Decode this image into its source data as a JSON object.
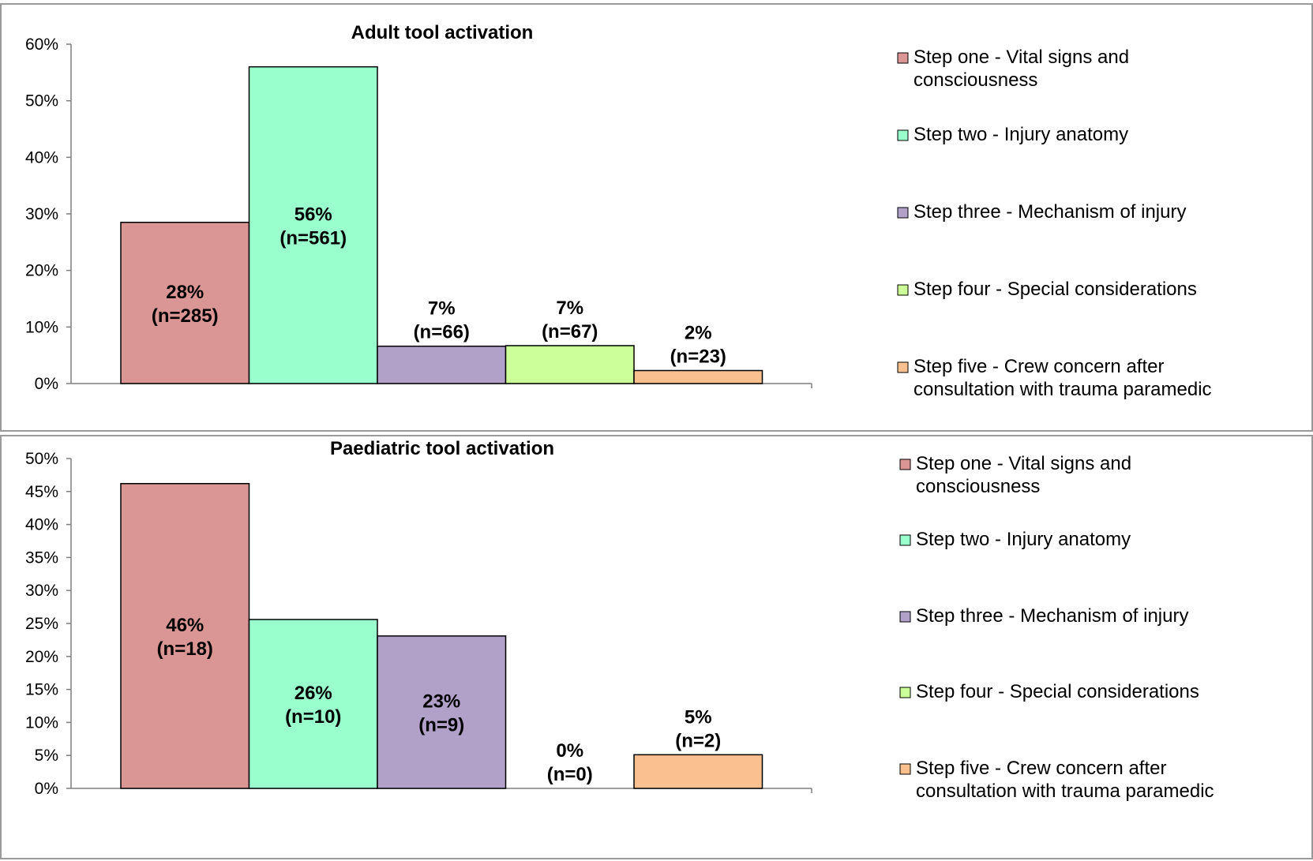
{
  "chart_data": [
    {
      "type": "bar",
      "title": "Adult tool activation",
      "yticks": [
        "0%",
        "10%",
        "20%",
        "30%",
        "40%",
        "50%",
        "60%"
      ],
      "ylim": [
        0,
        60
      ],
      "grid": false,
      "legend_position": "right",
      "series": [
        {
          "name": "Step one - Vital signs and consciousness",
          "legend_lines": [
            "Step one - Vital signs and",
            "consciousness"
          ],
          "value": 28.5,
          "label_pct": "28%",
          "label_n": "(n=285)",
          "color": "#D99694"
        },
        {
          "name": "Step two - Injury anatomy",
          "legend_lines": [
            "Step two - Injury anatomy"
          ],
          "value": 56,
          "label_pct": "56%",
          "label_n": "(n=561)",
          "color": "#99FFCC"
        },
        {
          "name": "Step three - Mechanism of injury",
          "legend_lines": [
            "Step three - Mechanism of injury"
          ],
          "value": 6.6,
          "label_pct": "7%",
          "label_n": "(n=66)",
          "color": "#B1A0C7"
        },
        {
          "name": "Step four - Special considerations",
          "legend_lines": [
            "Step four - Special considerations"
          ],
          "value": 6.7,
          "label_pct": "7%",
          "label_n": "(n=67)",
          "color": "#CCFF99"
        },
        {
          "name": "Step five - Crew concern after consultation with trauma paramedic",
          "legend_lines": [
            "Step five - Crew concern after",
            "consultation with trauma paramedic"
          ],
          "value": 2.3,
          "label_pct": "2%",
          "label_n": "(n=23)",
          "color": "#FAC090"
        }
      ]
    },
    {
      "type": "bar",
      "title": "Paediatric tool activation",
      "yticks": [
        "0%",
        "5%",
        "10%",
        "15%",
        "20%",
        "25%",
        "30%",
        "35%",
        "40%",
        "45%",
        "50%"
      ],
      "ylim": [
        0,
        50
      ],
      "grid": false,
      "legend_position": "right",
      "series": [
        {
          "name": "Step one - Vital signs and consciousness",
          "legend_lines": [
            "Step one - Vital signs and",
            "consciousness"
          ],
          "value": 46.2,
          "label_pct": "46%",
          "label_n": "(n=18)",
          "color": "#D99694"
        },
        {
          "name": "Step two - Injury anatomy",
          "legend_lines": [
            "Step two - Injury anatomy"
          ],
          "value": 25.6,
          "label_pct": "26%",
          "label_n": "(n=10)",
          "color": "#99FFCC"
        },
        {
          "name": "Step three - Mechanism of injury",
          "legend_lines": [
            "Step three - Mechanism of injury"
          ],
          "value": 23.1,
          "label_pct": "23%",
          "label_n": "(n=9)",
          "color": "#B1A0C7"
        },
        {
          "name": "Step four - Special considerations",
          "legend_lines": [
            "Step four - Special considerations"
          ],
          "value": 0,
          "label_pct": "0%",
          "label_n": "(n=0)",
          "color": "#CCFF99"
        },
        {
          "name": "Step five - Crew concern after consultation with trauma paramedic",
          "legend_lines": [
            "Step five - Crew concern after",
            "consultation with trauma paramedic"
          ],
          "value": 5.1,
          "label_pct": "5%",
          "label_n": "(n=2)",
          "color": "#FAC090"
        }
      ]
    }
  ]
}
